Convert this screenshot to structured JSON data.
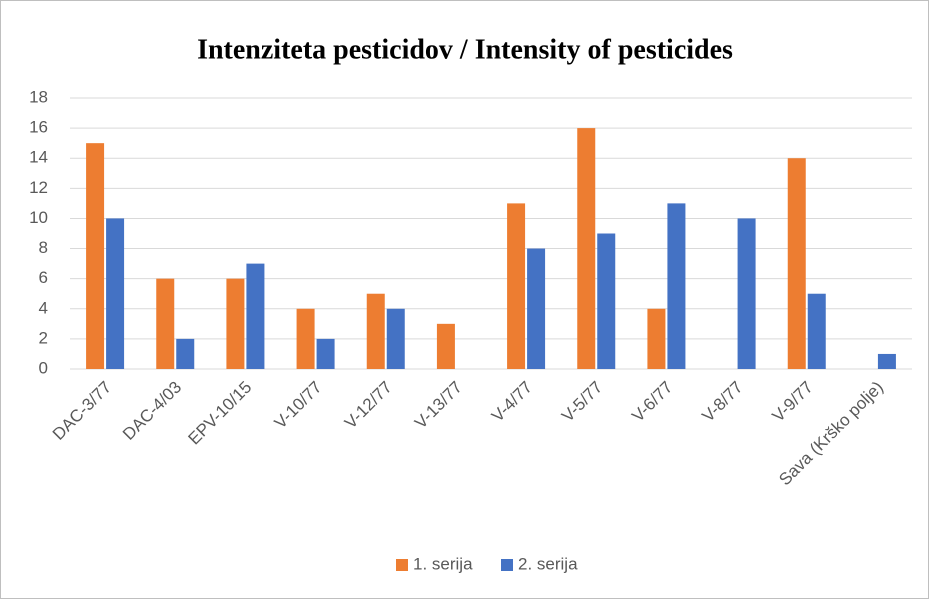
{
  "chart_data": {
    "type": "bar",
    "title": "Intenziteta pesticidov / Intensity of pesticides",
    "categories": [
      "DAC-3/77",
      "DAC-4/03",
      "EPV-10/15",
      "V-10/77",
      "V-12/77",
      "V-13/77",
      "V-4/77",
      "V-5/77",
      "V-6/77",
      "V-8/77",
      "V-9/77",
      "Sava (Krško polje)"
    ],
    "series": [
      {
        "name": "1. serija",
        "color": "#ed7d31",
        "values": [
          15,
          6,
          6,
          4,
          5,
          3,
          11,
          16,
          4,
          0,
          14,
          0
        ]
      },
      {
        "name": "2. serija",
        "color": "#4472c4",
        "values": [
          10,
          2,
          7,
          2,
          4,
          0,
          8,
          9,
          11,
          10,
          5,
          1
        ]
      }
    ],
    "ylim": [
      0,
      18
    ],
    "yticks": [
      0,
      2,
      4,
      6,
      8,
      10,
      12,
      14,
      16,
      18
    ],
    "grid": true,
    "legend": "bottom"
  }
}
